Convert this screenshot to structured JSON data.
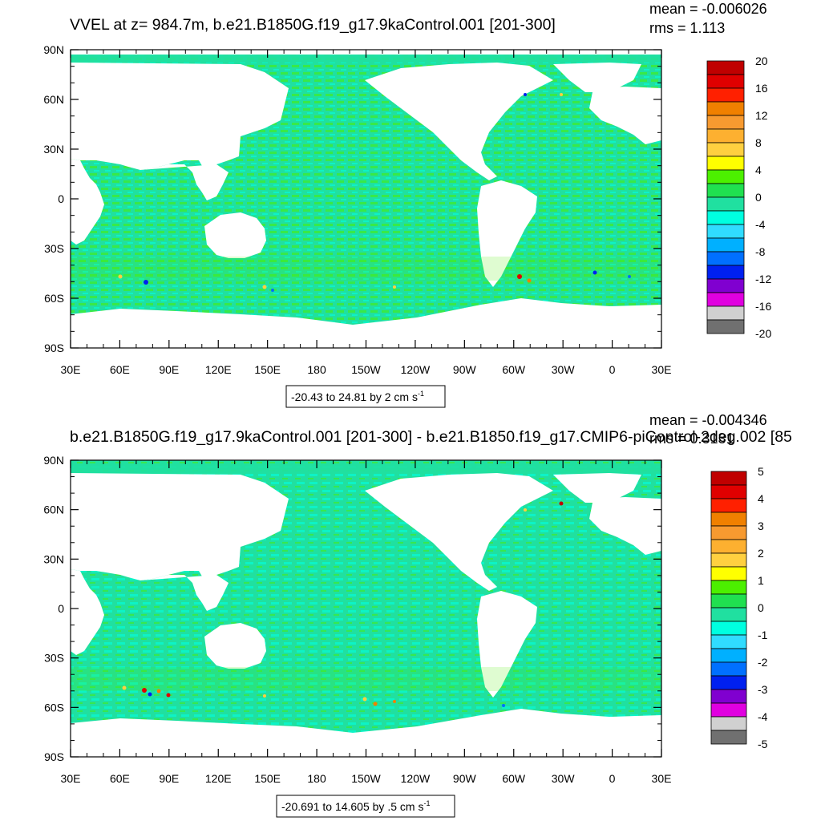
{
  "chart_data": [
    {
      "type": "heatmap",
      "title": "VVEL at z= 984.7m, b.e21.B1850G.f19_g17.9kaControl.001 [201-300]",
      "stats": {
        "mean": "mean = -0.006026",
        "rms": "rms = 1.113"
      },
      "range_label": "-20.43 to 24.81 by 2 cm s",
      "range_sup": "-1",
      "xticks": [
        "30E",
        "60E",
        "90E",
        "120E",
        "150E",
        "180",
        "150W",
        "120W",
        "90W",
        "60W",
        "30W",
        "0",
        "30E"
      ],
      "yticks": [
        "90N",
        "60N",
        "30N",
        "0",
        "30S",
        "60S",
        "90S"
      ],
      "colorbar": {
        "labels": [
          "20",
          "16",
          "12",
          "8",
          "4",
          "0",
          "-4",
          "-8",
          "-12",
          "-16",
          "-20"
        ],
        "levels": [
          20,
          18,
          16,
          14,
          12,
          10,
          8,
          6,
          4,
          2,
          0,
          -2,
          -4,
          -6,
          -8,
          -10,
          -12,
          -14,
          -16,
          -18,
          -20
        ]
      }
    },
    {
      "type": "heatmap",
      "title": "b.e21.B1850G.f19_g17.9kaControl.001 [201-300] - b.e21.B1850.f19_g17.CMIP6-piControl-2deg.002 [85",
      "stats": {
        "mean": "mean = -0.004346",
        "rms": "rms = 0.3131"
      },
      "range_label": "-20.691 to 14.605 by .5 cm s",
      "range_sup": "-1",
      "xticks": [
        "30E",
        "60E",
        "90E",
        "120E",
        "150E",
        "180",
        "150W",
        "120W",
        "90W",
        "60W",
        "30W",
        "0",
        "30E"
      ],
      "yticks": [
        "90N",
        "60N",
        "30N",
        "0",
        "30S",
        "60S",
        "90S"
      ],
      "colorbar": {
        "labels": [
          "5",
          "4",
          "3",
          "2",
          "1",
          "0",
          "-1",
          "-2",
          "-3",
          "-4",
          "-5"
        ],
        "levels": [
          5,
          4.5,
          4,
          3.5,
          3,
          2.5,
          2,
          1.5,
          1,
          0.5,
          0,
          -0.5,
          -1,
          -1.5,
          -2,
          -2.5,
          -3,
          -3.5,
          -4,
          -4.5,
          -5
        ]
      }
    }
  ],
  "palette": [
    "#c00000",
    "#e00000",
    "#ff2000",
    "#f08000",
    "#f79a30",
    "#fdb030",
    "#ffd040",
    "#ffff00",
    "#4cf000",
    "#20e050",
    "#20e0a0",
    "#00ffe0",
    "#30dcff",
    "#00b0ff",
    "#0070ff",
    "#0020f0",
    "#8000d0",
    "#e000e0",
    "#d0d0d0",
    "#707070"
  ]
}
